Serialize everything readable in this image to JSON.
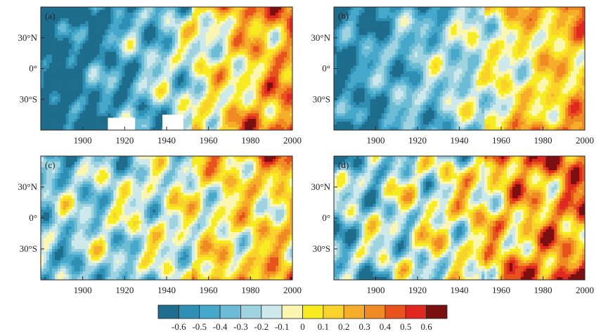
{
  "chart_data": {
    "type": "heatmap",
    "x_ticks": [
      "1900",
      "1920",
      "1940",
      "1960",
      "1980",
      "2000"
    ],
    "y_ticks": [
      "30°N",
      "0°",
      "30°S"
    ],
    "xlim": [
      1880,
      2000
    ],
    "ylim": [
      -60,
      60
    ],
    "panels": [
      {
        "label": "(a)",
        "field": {
          "base": -0.25,
          "trend": 0.9,
          "wave": 0.25,
          "seed": 1
        },
        "missing_blocks": [
          [
            1912,
            1925,
            -60,
            -48
          ],
          [
            1938,
            1948,
            -60,
            -45
          ]
        ]
      },
      {
        "label": "(b)",
        "field": {
          "base": -0.2,
          "trend": 0.65,
          "wave": 0.2,
          "seed": 2
        },
        "missing_blocks": []
      },
      {
        "label": "(c)",
        "field": {
          "base": -0.1,
          "trend": 0.35,
          "wave": 0.25,
          "seed": 3
        },
        "missing_blocks": []
      },
      {
        "label": "(d)",
        "field": {
          "base": 0.0,
          "trend": 0.55,
          "wave": 0.3,
          "seed": 4
        },
        "missing_blocks": []
      }
    ],
    "colorbar": {
      "labels": [
        "-0.6",
        "-0.5",
        "-0.4",
        "-0.3",
        "-0.2",
        "-0.1",
        "0",
        "0.1",
        "0.2",
        "0.3",
        "0.4",
        "0.5",
        "0.6"
      ],
      "colors": [
        "#1f6d8c",
        "#2f8fb4",
        "#46a8cb",
        "#6cbcd6",
        "#9fd3df",
        "#cde9ec",
        "#fbf7b0",
        "#f7ec1f",
        "#f9d22a",
        "#f6ad2a",
        "#f08a22",
        "#e8521c",
        "#e02820",
        "#7a1010"
      ],
      "bounds": [
        -0.6,
        0.6
      ]
    }
  }
}
